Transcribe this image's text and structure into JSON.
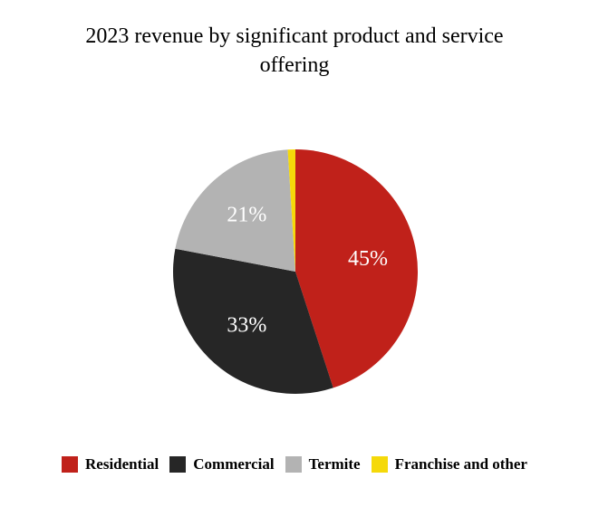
{
  "chart_data": {
    "type": "pie",
    "title": "2023 revenue by significant product and service offering",
    "categories": [
      "Residential",
      "Commercial",
      "Termite",
      "Franchise and other"
    ],
    "values": [
      45,
      33,
      21,
      1
    ],
    "value_labels": [
      "45%",
      "33%",
      "21%",
      null
    ],
    "colors": [
      "#c0211a",
      "#262626",
      "#b3b3b3",
      "#f5d90a"
    ],
    "legend": "bottom"
  }
}
